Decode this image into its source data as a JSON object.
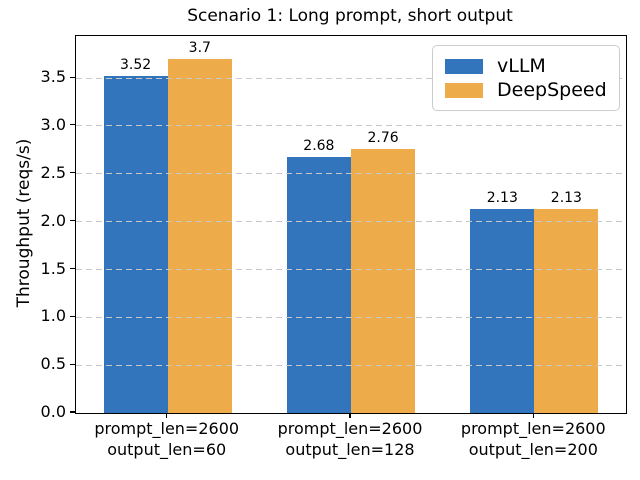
{
  "chart_data": {
    "type": "bar",
    "title": "Scenario 1: Long prompt, short output",
    "xlabel": "",
    "ylabel": "Throughput (reqs/s)",
    "categories": [
      [
        "prompt_len=2600",
        "output_len=60"
      ],
      [
        "prompt_len=2600",
        "output_len=128"
      ],
      [
        "prompt_len=2600",
        "output_len=200"
      ]
    ],
    "series": [
      {
        "name": "vLLM",
        "color": "#3375bc",
        "values": [
          3.52,
          2.68,
          2.13
        ],
        "labels": [
          "3.52",
          "2.68",
          "2.13"
        ]
      },
      {
        "name": "DeepSpeed",
        "color": "#eeab4a",
        "values": [
          3.7,
          2.76,
          2.13
        ],
        "labels": [
          "3.7",
          "2.76",
          "2.13"
        ]
      }
    ],
    "ylim": [
      0,
      3.94
    ],
    "yticks": [
      0.0,
      0.5,
      1.0,
      1.5,
      2.0,
      2.5,
      3.0,
      3.5
    ],
    "ytick_labels": [
      "0.0",
      "0.5",
      "1.0",
      "1.5",
      "2.0",
      "2.5",
      "3.0",
      "3.5"
    ],
    "bar_width_fraction": 0.35,
    "grid": "horizontal dashed, drawn above bars",
    "legend_position": "upper right",
    "layout_colors": {
      "grid": "#c8c8c8",
      "spine": "#000000",
      "legend_border": "#cccccc",
      "background": "#ffffff",
      "text": "#000000"
    }
  }
}
